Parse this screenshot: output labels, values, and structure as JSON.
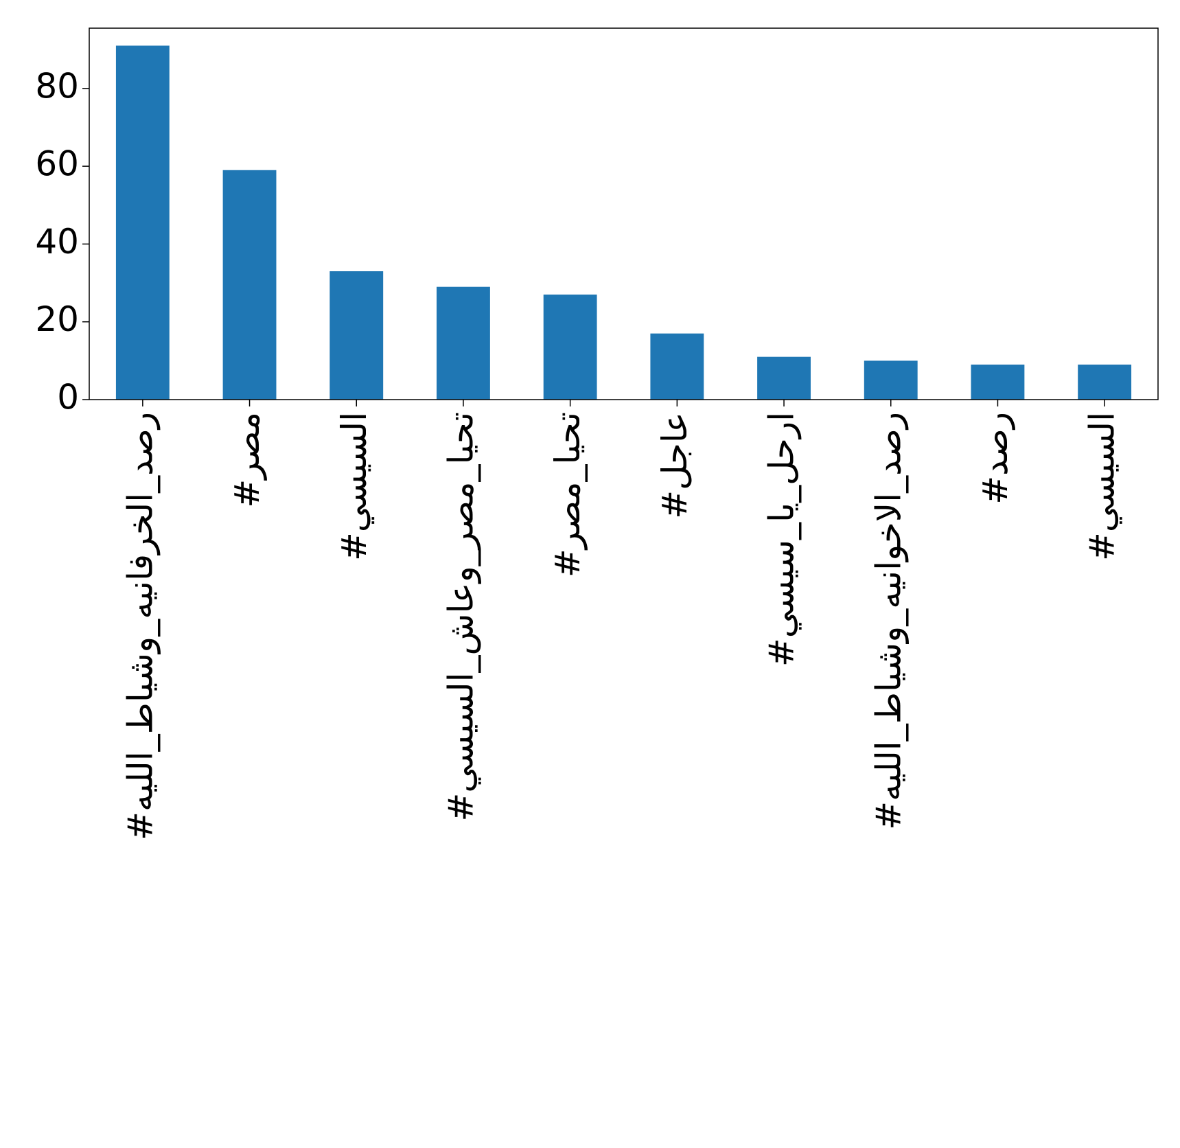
{
  "chart_data": {
    "type": "bar",
    "categories": [
      "#رصد_الخرفانيه_وشياط_الليه",
      "#مصر",
      "#السيسي",
      "#تحيا_مصر_وعاش_السيسي",
      "#تحيا_مصر",
      "#عاجل",
      "#ارحل_يا_سيسي",
      "#رصد_الاخوانيه_وشياط_الليه",
      "#رصد",
      "#السيسي"
    ],
    "values": [
      91,
      59,
      33,
      29,
      27,
      17,
      11,
      10,
      9,
      9
    ],
    "color": "#1f77b4",
    "ylim": [
      0,
      95.5
    ],
    "yticks": [
      0,
      20,
      40,
      60,
      80
    ]
  }
}
